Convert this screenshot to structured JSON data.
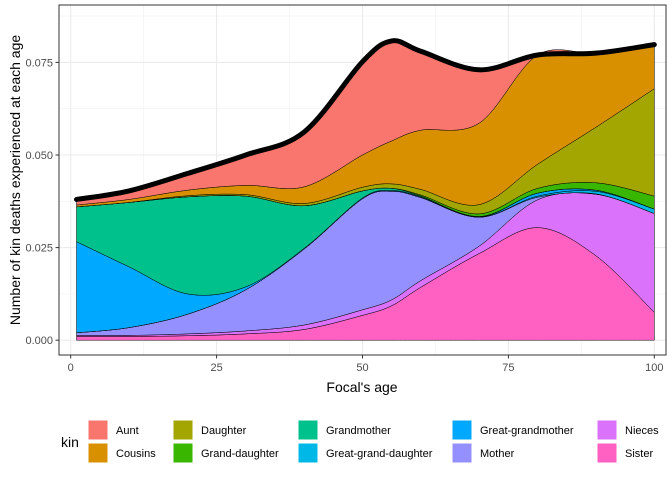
{
  "chart_data": {
    "type": "area",
    "stacked": true,
    "xlabel": "Focal's age",
    "ylabel": "Number of kin deaths experienced at each age",
    "xlim": [
      -2,
      102
    ],
    "ylim": [
      -0.004,
      0.0905
    ],
    "xticks": [
      0,
      25,
      50,
      75,
      100
    ],
    "yticks": [
      0.0,
      0.025,
      0.05,
      0.075
    ],
    "ytick_labels": [
      "0.000",
      "0.025",
      "0.050",
      "0.075"
    ],
    "grid": true,
    "legend": {
      "title": "kin",
      "position": "bottom"
    },
    "x": [
      1,
      10,
      20,
      30,
      40,
      50,
      55,
      60,
      70,
      80,
      90,
      100
    ],
    "series": [
      {
        "name": "Sister",
        "color": "#FF61C3",
        "values": [
          0.001,
          0.001,
          0.0012,
          0.0017,
          0.0029,
          0.0067,
          0.0093,
          0.0143,
          0.0234,
          0.0304,
          0.0228,
          0.0075
        ]
      },
      {
        "name": "Nieces",
        "color": "#DB72FB",
        "values": [
          0.0003,
          0.0003,
          0.0005,
          0.0008,
          0.0012,
          0.0015,
          0.0016,
          0.0018,
          0.002,
          0.0075,
          0.0166,
          0.0267
        ]
      },
      {
        "name": "Mother",
        "color": "#9590FF",
        "values": [
          0.0007,
          0.0021,
          0.0053,
          0.0111,
          0.0205,
          0.03,
          0.0293,
          0.0224,
          0.0078,
          0.0007,
          0.0001,
          0.0
        ]
      },
      {
        "name": "Great-grand-daughter",
        "color": "#00B8E7",
        "values": [
          0.0,
          0.0,
          0.0,
          0.0,
          0.0,
          0.0,
          0.0,
          0.0,
          0.0,
          0.0003,
          0.0007,
          0.0012
        ]
      },
      {
        "name": "Great-grandmother",
        "color": "#00A9FF",
        "values": [
          0.0246,
          0.0164,
          0.0055,
          0.0008,
          0.0002,
          0.0002,
          0.0002,
          0.0002,
          0.0001,
          0.0008,
          0.0003,
          0.0
        ]
      },
      {
        "name": "Grandmother",
        "color": "#00C08B",
        "values": [
          0.0094,
          0.0174,
          0.0262,
          0.0245,
          0.0115,
          0.0019,
          0.0006,
          0.0002,
          0.0001,
          0.0,
          0.0,
          0.0
        ]
      },
      {
        "name": "Grand-daughter",
        "color": "#39B600",
        "values": [
          0.0,
          0.0,
          0.0,
          0.0,
          0.0,
          0.0,
          0.0,
          0.0003,
          0.0007,
          0.0013,
          0.002,
          0.0035
        ]
      },
      {
        "name": "Daughter",
        "color": "#A3A500",
        "values": [
          0.0,
          0.0,
          0.0003,
          0.0004,
          0.0006,
          0.001,
          0.0012,
          0.0015,
          0.0025,
          0.0065,
          0.015,
          0.029
        ]
      },
      {
        "name": "Cousins",
        "color": "#D89000",
        "values": [
          0.0005,
          0.0008,
          0.0015,
          0.0025,
          0.0045,
          0.0087,
          0.0116,
          0.016,
          0.022,
          0.0295,
          0.02,
          0.0119
        ]
      },
      {
        "name": "Aunt",
        "color": "#F8766D",
        "values": [
          0.0015,
          0.0023,
          0.0045,
          0.0082,
          0.0148,
          0.0252,
          0.027,
          0.0213,
          0.0144,
          0.0,
          0.0,
          0.0
        ]
      }
    ],
    "legend_order": [
      "Aunt",
      "Cousins",
      "Daughter",
      "Grand-daughter",
      "Grandmother",
      "Great-grand-daughter",
      "Great-grandmother",
      "Mother",
      "Nieces",
      "Sister"
    ]
  }
}
